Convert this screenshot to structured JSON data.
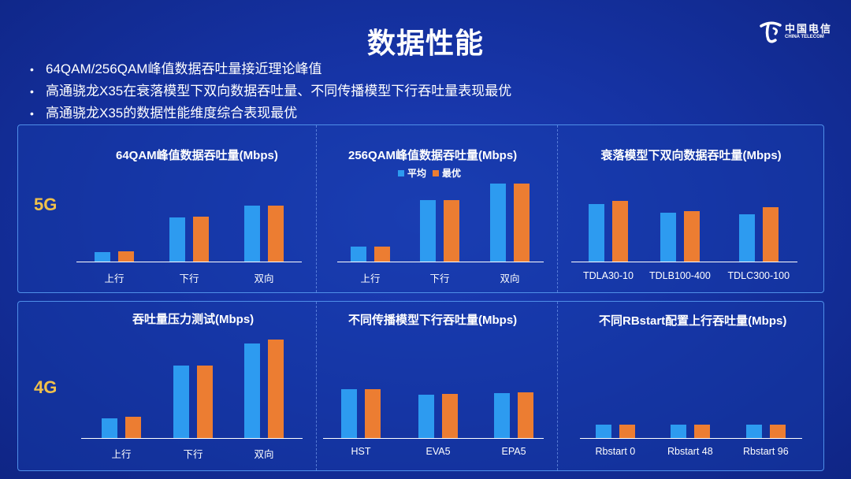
{
  "title": "数据性能",
  "logo": {
    "cn": "中国电信",
    "en": "CHINA TELECOM"
  },
  "bullets": [
    "64QAM/256QAM峰值数据吞吐量接近理论峰值",
    "高通骁龙X35在衰落模型下双向数据吞吐量、不同传播模型下行吞吐量表现最优",
    "高通骁龙X35的数据性能维度综合表现最优"
  ],
  "rows": [
    {
      "label": "5G"
    },
    {
      "label": "4G"
    }
  ],
  "legend": {
    "avg": "平均",
    "best": "最优"
  },
  "colors": {
    "avg": "#2d9bf0",
    "best": "#ec7d32",
    "label": "#f0c14b"
  },
  "chart_data": [
    {
      "type": "bar",
      "title": "64QAM峰值数据吞吐量(Mbps)",
      "categories": [
        "上行",
        "下行",
        "双向"
      ],
      "series": [
        {
          "name": "平均",
          "values": [
            12,
            55,
            70
          ]
        },
        {
          "name": "最优",
          "values": [
            13,
            56,
            70
          ]
        }
      ],
      "ylim": [
        0,
        100
      ],
      "ylabel": "",
      "xlabel": ""
    },
    {
      "type": "bar",
      "title": "256QAM峰值数据吞吐量(Mbps)",
      "categories": [
        "上行",
        "下行",
        "双向"
      ],
      "series": [
        {
          "name": "平均",
          "values": [
            19,
            76,
            97
          ]
        },
        {
          "name": "最优",
          "values": [
            19,
            76,
            97
          ]
        }
      ],
      "ylim": [
        0,
        100
      ],
      "ylabel": "",
      "xlabel": ""
    },
    {
      "type": "bar",
      "title": "衰落模型下双向数据吞吐量(Mbps)",
      "categories": [
        "TDLA30-10",
        "TDLB100-400",
        "TDLC300-100"
      ],
      "series": [
        {
          "name": "平均",
          "values": [
            72,
            61,
            59
          ]
        },
        {
          "name": "最优",
          "values": [
            75,
            63,
            68
          ]
        }
      ],
      "ylim": [
        0,
        100
      ],
      "ylabel": "",
      "xlabel": ""
    },
    {
      "type": "bar",
      "title": "吞吐量压力测试(Mbps)",
      "categories": [
        "上行",
        "下行",
        "双向"
      ],
      "series": [
        {
          "name": "平均",
          "values": [
            24,
            87,
            113
          ]
        },
        {
          "name": "最优",
          "values": [
            25,
            87,
            118
          ]
        }
      ],
      "ylim": [
        0,
        130
      ],
      "ylabel": "",
      "xlabel": ""
    },
    {
      "type": "bar",
      "title": "不同传播模型下行吞吐量(Mbps)",
      "categories": [
        "HST",
        "EVA5",
        "EPA5"
      ],
      "series": [
        {
          "name": "平均",
          "values": [
            60,
            53,
            55
          ]
        },
        {
          "name": "最优",
          "values": [
            60,
            54,
            56
          ]
        }
      ],
      "ylim": [
        0,
        100
      ],
      "ylabel": "",
      "xlabel": ""
    },
    {
      "type": "bar",
      "title": "不同RBstart配置上行吞吐量(Mbps)",
      "categories": [
        "Rbstart 0",
        "Rbstart 48",
        "Rbstart 96"
      ],
      "series": [
        {
          "name": "平均",
          "values": [
            17,
            17,
            17
          ]
        },
        {
          "name": "最优",
          "values": [
            17,
            17,
            17
          ]
        }
      ],
      "ylim": [
        0,
        100
      ],
      "ylabel": "",
      "xlabel": ""
    }
  ]
}
